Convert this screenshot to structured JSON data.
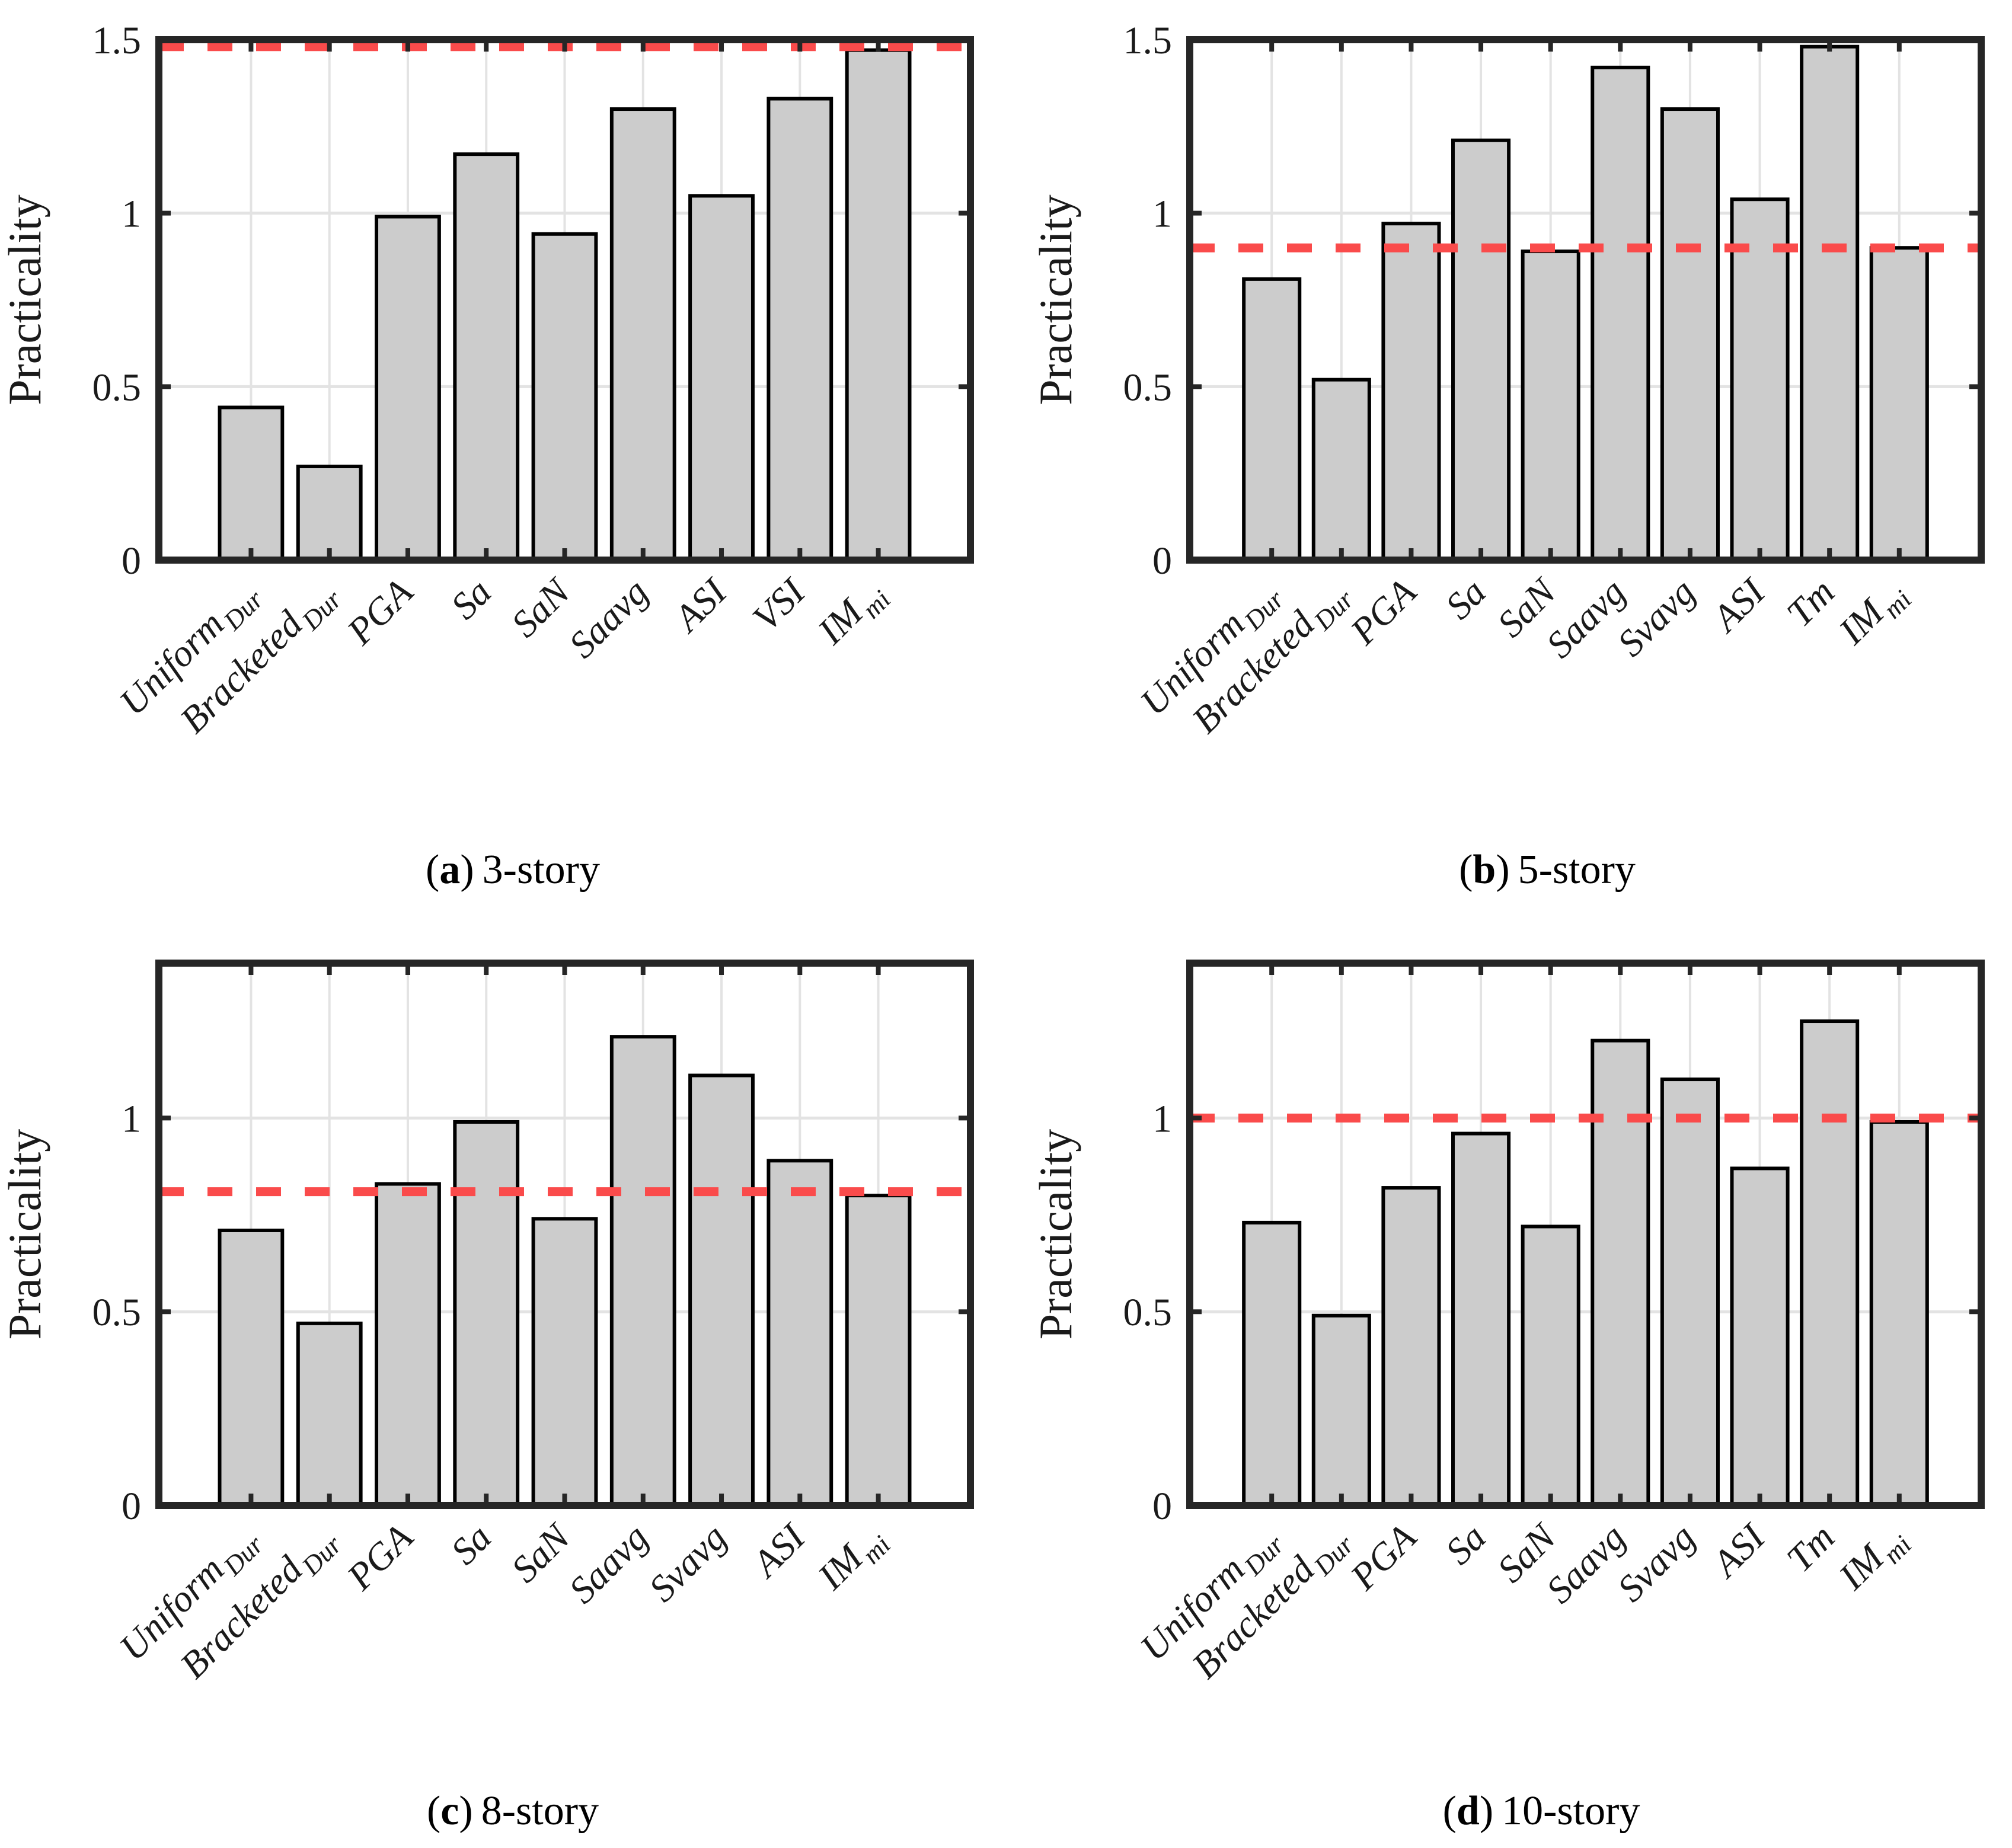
{
  "figure": {
    "background": "#ffffff",
    "text_color": "#1a1a1a",
    "axis_color": "#262626",
    "grid_color": "#e3e3e3"
  },
  "chart_data": [
    {
      "type": "bar",
      "panel": "a",
      "caption": {
        "open": "(",
        "letter": "a",
        "close": ")",
        "title": "3-story"
      },
      "ylabel": "Practicality",
      "ylim": [
        0,
        1.5
      ],
      "grid": true,
      "yticks": [
        {
          "value": 0,
          "label": "0"
        },
        {
          "value": 0.5,
          "label": "0.5"
        },
        {
          "value": 1,
          "label": "1"
        },
        {
          "value": 1.5,
          "label": "1.5"
        }
      ],
      "categories": [
        {
          "label": "Uniform",
          "sub": "Dur"
        },
        {
          "label": "Bracketed",
          "sub": "Dur"
        },
        {
          "label": "PGA",
          "sub": ""
        },
        {
          "label": "Sa",
          "sub": ""
        },
        {
          "label": "SaN",
          "sub": ""
        },
        {
          "label": "Saavg",
          "sub": ""
        },
        {
          "label": "ASI",
          "sub": ""
        },
        {
          "label": "VSI",
          "sub": ""
        },
        {
          "label": "IM",
          "sub": "mi"
        }
      ],
      "values": [
        0.44,
        0.27,
        0.99,
        1.17,
        0.94,
        1.3,
        1.05,
        1.33,
        1.47
      ],
      "reference_line": {
        "value": 1.48,
        "style": "dashed",
        "color": "#fa4b4b"
      },
      "bar_fill": "#cccccc",
      "bar_edge": "#000000"
    },
    {
      "type": "bar",
      "panel": "b",
      "caption": {
        "open": "(",
        "letter": "b",
        "close": ")",
        "title": "5-story"
      },
      "ylabel": "Practicality",
      "ylim": [
        0,
        1.5
      ],
      "grid": true,
      "yticks": [
        {
          "value": 0,
          "label": "0"
        },
        {
          "value": 0.5,
          "label": "0.5"
        },
        {
          "value": 1,
          "label": "1"
        },
        {
          "value": 1.5,
          "label": "1.5"
        }
      ],
      "categories": [
        {
          "label": "Uniform",
          "sub": "Dur"
        },
        {
          "label": "Bracketed",
          "sub": "Dur"
        },
        {
          "label": "PGA",
          "sub": ""
        },
        {
          "label": "Sa",
          "sub": ""
        },
        {
          "label": "SaN",
          "sub": ""
        },
        {
          "label": "Saavg",
          "sub": ""
        },
        {
          "label": "Svavg",
          "sub": ""
        },
        {
          "label": "ASI",
          "sub": ""
        },
        {
          "label": "Tm",
          "sub": ""
        },
        {
          "label": "IM",
          "sub": "mi"
        }
      ],
      "values": [
        0.81,
        0.52,
        0.97,
        1.21,
        0.89,
        1.42,
        1.3,
        1.04,
        1.48,
        0.9
      ],
      "reference_line": {
        "value": 0.9,
        "style": "dashed",
        "color": "#fa4b4b"
      },
      "bar_fill": "#cccccc",
      "bar_edge": "#000000"
    },
    {
      "type": "bar",
      "panel": "c",
      "caption": {
        "open": "(",
        "letter": "c",
        "close": ")",
        "title": "8-story"
      },
      "ylabel": "Practicality",
      "ylim": [
        0,
        1.4
      ],
      "grid": true,
      "yticks": [
        {
          "value": 0,
          "label": "0"
        },
        {
          "value": 0.5,
          "label": "0.5"
        },
        {
          "value": 1,
          "label": "1"
        }
      ],
      "categories": [
        {
          "label": "Uniform",
          "sub": "Dur"
        },
        {
          "label": "Bracketed",
          "sub": "Dur"
        },
        {
          "label": "PGA",
          "sub": ""
        },
        {
          "label": "Sa",
          "sub": ""
        },
        {
          "label": "SaN",
          "sub": ""
        },
        {
          "label": "Saavg",
          "sub": ""
        },
        {
          "label": "Svavg",
          "sub": ""
        },
        {
          "label": "ASI",
          "sub": ""
        },
        {
          "label": "IM",
          "sub": "mi"
        }
      ],
      "values": [
        0.71,
        0.47,
        0.83,
        0.99,
        0.74,
        1.21,
        1.11,
        0.89,
        0.8
      ],
      "reference_line": {
        "value": 0.81,
        "style": "dashed",
        "color": "#fa4b4b"
      },
      "bar_fill": "#cccccc",
      "bar_edge": "#000000"
    },
    {
      "type": "bar",
      "panel": "d",
      "caption": {
        "open": "(",
        "letter": "d",
        "close": ")",
        "title": "10-story"
      },
      "ylabel": "Practicality",
      "ylim": [
        0,
        1.4
      ],
      "grid": true,
      "yticks": [
        {
          "value": 0,
          "label": "0"
        },
        {
          "value": 0.5,
          "label": "0.5"
        },
        {
          "value": 1,
          "label": "1"
        }
      ],
      "categories": [
        {
          "label": "Uniform",
          "sub": "Dur"
        },
        {
          "label": "Bracketed",
          "sub": "Dur"
        },
        {
          "label": "PGA",
          "sub": ""
        },
        {
          "label": "Sa",
          "sub": ""
        },
        {
          "label": "SaN",
          "sub": ""
        },
        {
          "label": "Saavg",
          "sub": ""
        },
        {
          "label": "Svavg",
          "sub": ""
        },
        {
          "label": "ASI",
          "sub": ""
        },
        {
          "label": "Tm",
          "sub": ""
        },
        {
          "label": "IM",
          "sub": "mi"
        }
      ],
      "values": [
        0.73,
        0.49,
        0.82,
        0.96,
        0.72,
        1.2,
        1.1,
        0.87,
        1.25,
        0.99
      ],
      "reference_line": {
        "value": 1.0,
        "style": "dashed",
        "color": "#fa4b4b"
      },
      "bar_fill": "#cccccc",
      "bar_edge": "#000000"
    }
  ]
}
